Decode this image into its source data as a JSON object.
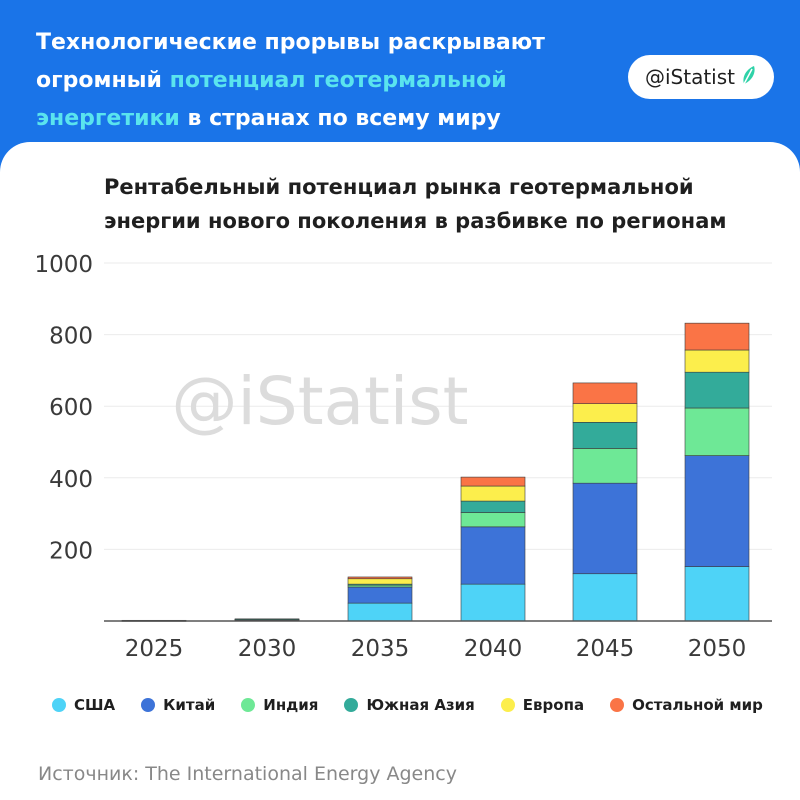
{
  "header": {
    "title_part1": "Технологические прорывы раскрывают огромный ",
    "title_highlight": "потенциал геотермальной энергетики",
    "title_part2": " в странах по всему миру",
    "brand": "@iStatist"
  },
  "watermark": "@iStatist",
  "source": "Источник: The International Energy Agency",
  "colors": {
    "header_bg": "#1a74e8",
    "highlight": "#5ae4ee",
    "usa": "#4ed3f7",
    "china": "#3d73d8",
    "india": "#6ee896",
    "south_asia": "#33ab9a",
    "europe": "#fcee4c",
    "rest": "#fa7446"
  },
  "chart_data": {
    "type": "bar",
    "stacked": true,
    "title": "Рентабельный потенциал рынка геотермальной энергии нового поколения в разбивке по регионам",
    "categories": [
      "2025",
      "2030",
      "2035",
      "2040",
      "2045",
      "2050"
    ],
    "ylim": [
      0,
      1000
    ],
    "yticks": [
      200,
      400,
      600,
      800,
      1000
    ],
    "grid": true,
    "legend_position": "bottom",
    "series": [
      {
        "name": "США",
        "color": "#4ed3f7",
        "values": [
          1,
          2,
          50,
          103,
          132,
          152
        ]
      },
      {
        "name": "Китай",
        "color": "#3d73d8",
        "values": [
          1,
          2,
          45,
          160,
          253,
          310
        ]
      },
      {
        "name": "Индия",
        "color": "#6ee896",
        "values": [
          0,
          1,
          5,
          40,
          97,
          133
        ]
      },
      {
        "name": "Южная Азия",
        "color": "#33ab9a",
        "values": [
          0,
          1,
          3,
          32,
          73,
          100
        ]
      },
      {
        "name": "Европа",
        "color": "#fcee4c",
        "values": [
          0,
          0,
          15,
          42,
          52,
          62
        ]
      },
      {
        "name": "Остальной мир",
        "color": "#fa7446",
        "values": [
          0,
          0,
          5,
          25,
          58,
          75
        ]
      }
    ]
  }
}
